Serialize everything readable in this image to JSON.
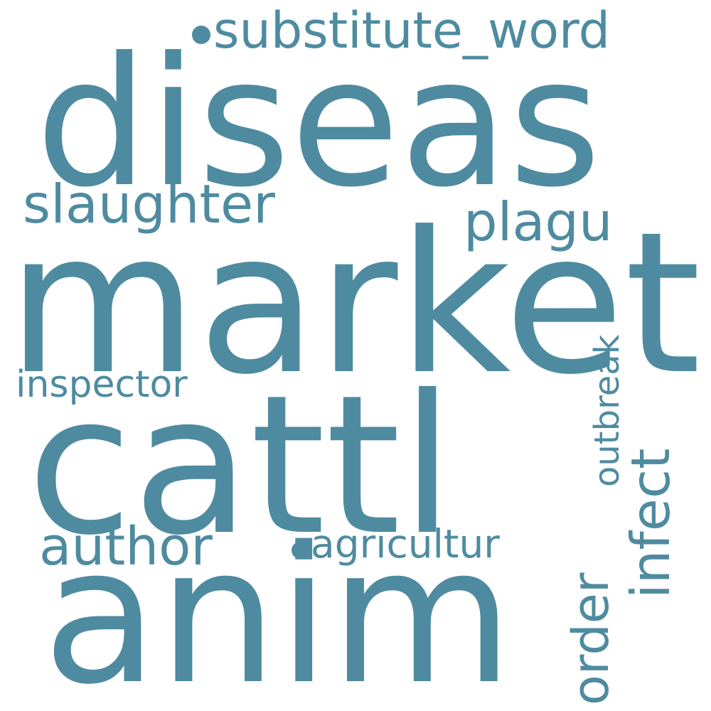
{
  "colors": {
    "background": "#ffffff",
    "word": "#4e8ba0"
  },
  "words": {
    "diseas": "diseas",
    "market": "market",
    "cattl": "cattl",
    "anim": "anim",
    "substitute_word": "substitute_word",
    "slaughter": "slaughter",
    "plagu": "plagu",
    "inspector": "inspector",
    "outbreak": "outbreak",
    "infect": "infect",
    "author": "author",
    "agricultur": "agricultur",
    "order": "order"
  }
}
